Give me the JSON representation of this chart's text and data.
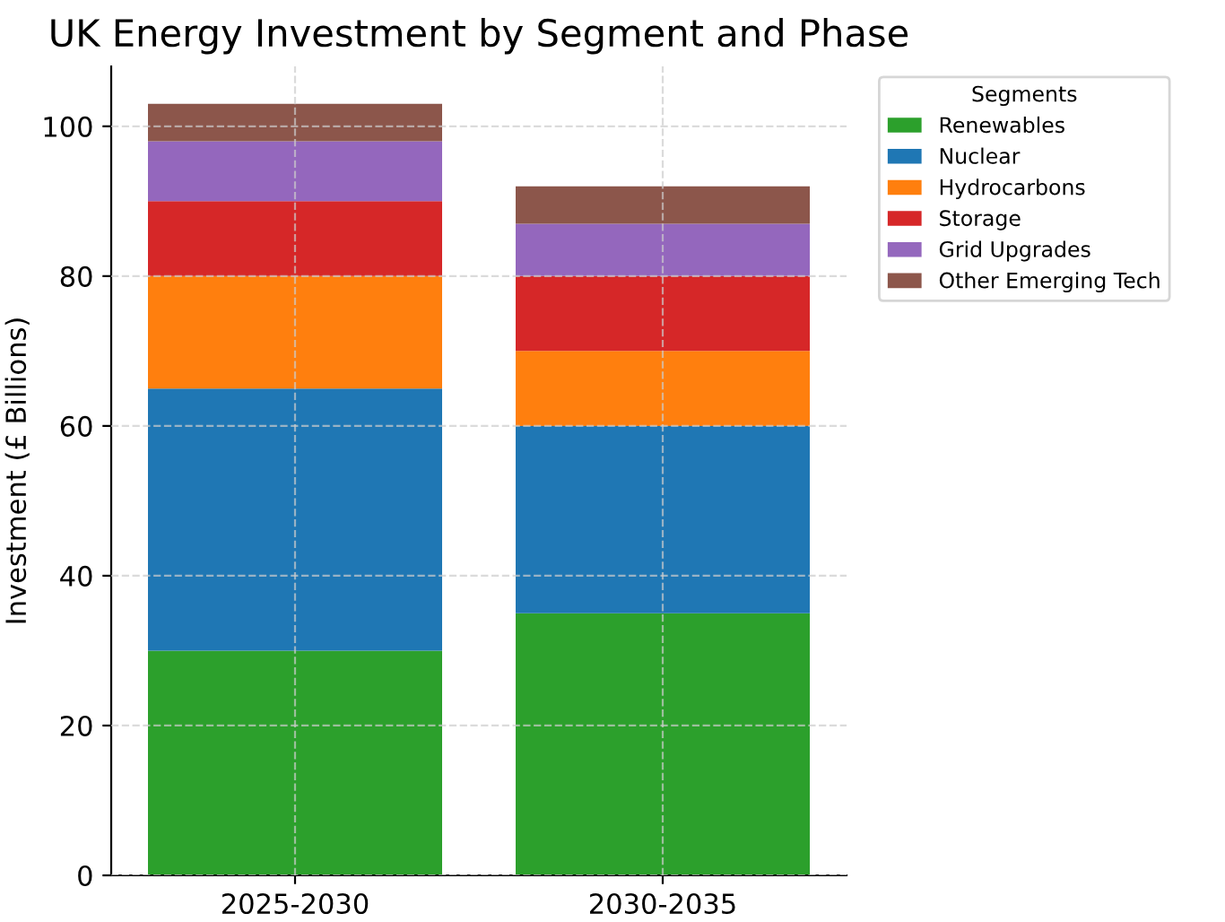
{
  "chart_data": {
    "type": "bar",
    "title": "UK Energy Investment by Segment and Phase",
    "ylabel": "Investment (£ Billions)",
    "legend_title": "Segments",
    "categories": [
      "2025-2030",
      "2030-2035"
    ],
    "stacked": true,
    "series": [
      {
        "name": "Renewables",
        "color": "#2ca02c",
        "values": [
          30,
          35
        ]
      },
      {
        "name": "Nuclear",
        "color": "#1f77b4",
        "values": [
          35,
          25
        ]
      },
      {
        "name": "Hydrocarbons",
        "color": "#ff7f0e",
        "values": [
          15,
          10
        ]
      },
      {
        "name": "Storage",
        "color": "#d62728",
        "values": [
          10,
          10
        ]
      },
      {
        "name": "Grid Upgrades",
        "color": "#9467bd",
        "values": [
          8,
          7
        ]
      },
      {
        "name": "Other Emerging Tech",
        "color": "#8c564b",
        "values": [
          5,
          5
        ]
      }
    ],
    "ylim": [
      0,
      108
    ],
    "yticks": [
      0,
      20,
      40,
      60,
      80,
      100
    ],
    "grid": true,
    "legend": "top right"
  }
}
